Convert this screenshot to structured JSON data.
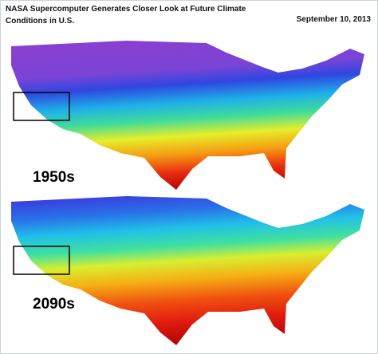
{
  "header": {
    "title": "NASA Supercomputer Generates Closer Look at Future Climate Conditions in U.S.",
    "date": "September 10, 2013"
  },
  "maps": [
    {
      "label": "1950s"
    },
    {
      "label": "2090s"
    }
  ]
}
